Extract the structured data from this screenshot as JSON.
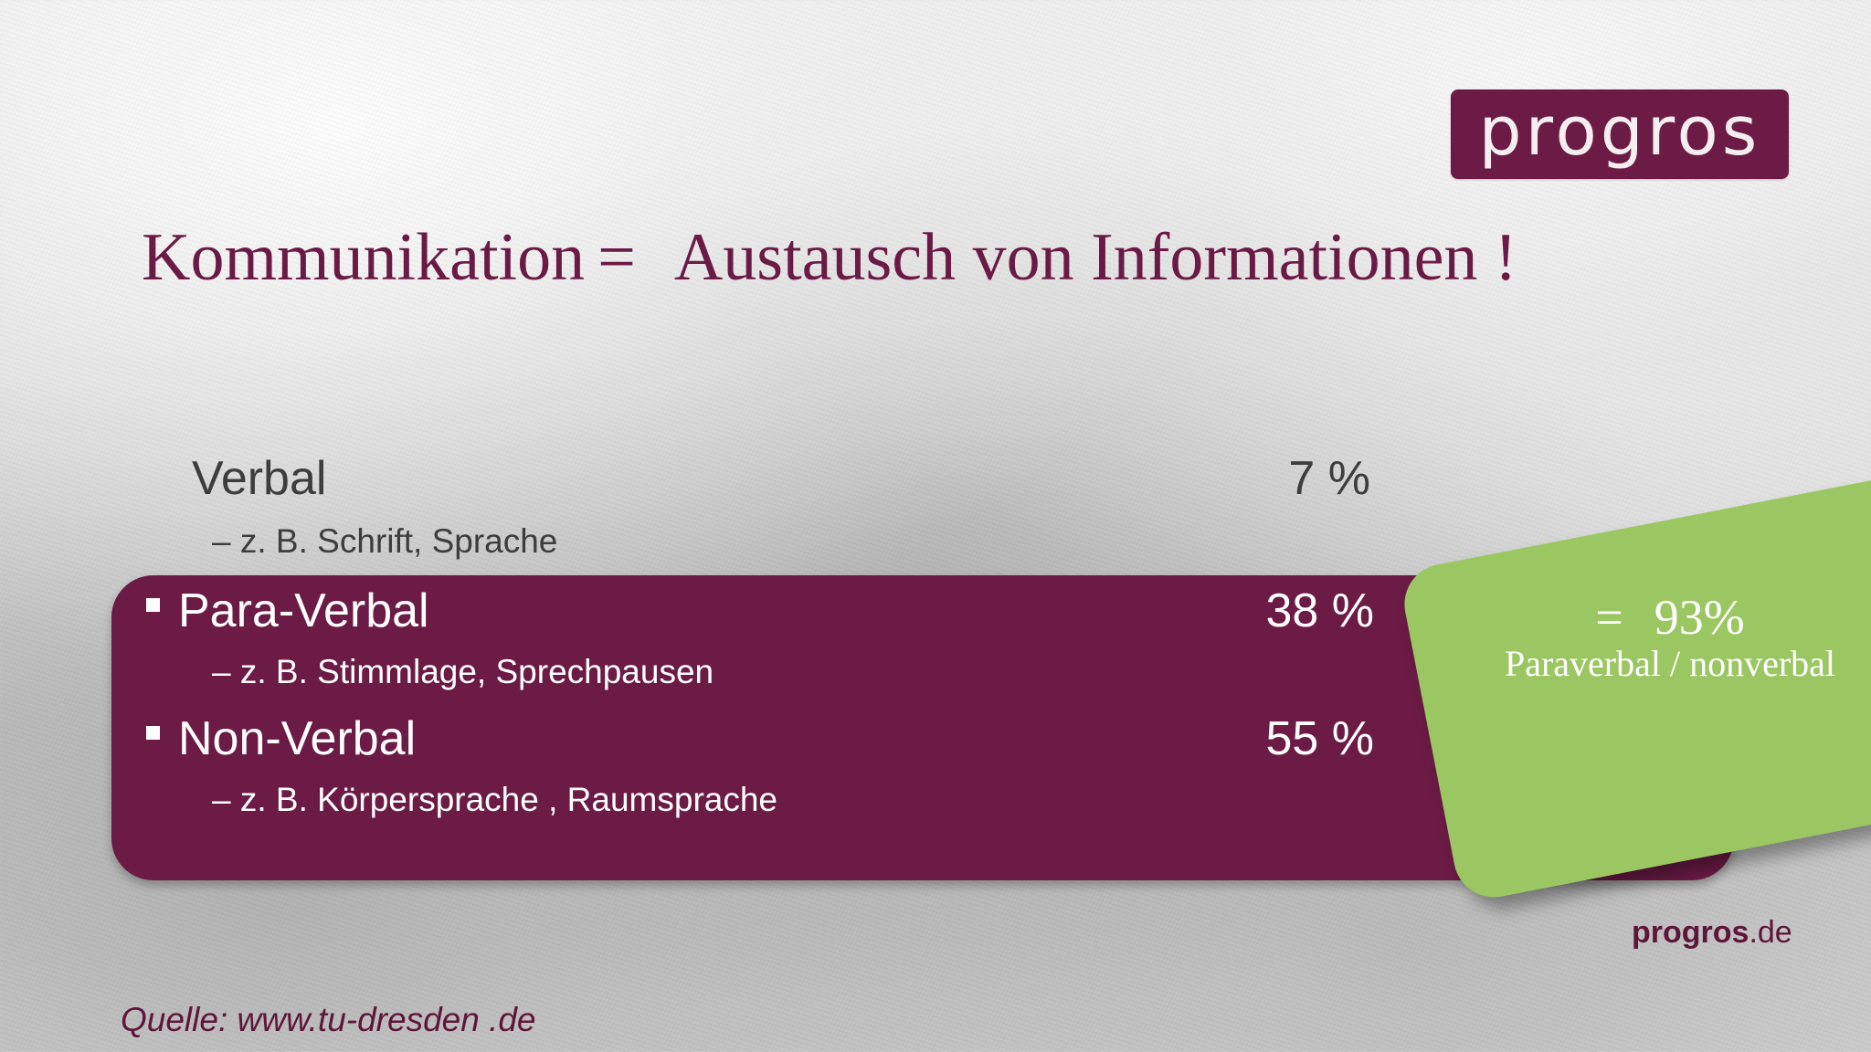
{
  "logo": {
    "text": "progros"
  },
  "title": {
    "left": "Kommunikation",
    "equals": "=",
    "right": "Austausch von Informationen !"
  },
  "items": [
    {
      "label": "Verbal",
      "percent": "7 %",
      "example": "– z. B. Schrift, Sprache"
    },
    {
      "label": "Para-Verbal",
      "percent": "38 %",
      "example": "– z. B. Stimmlage, Sprechpausen"
    },
    {
      "label": "Non-Verbal",
      "percent": "55 %",
      "example": "– z. B. Körpersprache , Raumsprache"
    }
  ],
  "summary": {
    "equals": "=",
    "value": "93%",
    "label": "Paraverbal  / nonverbal"
  },
  "footer": {
    "brand_bold": "progros",
    "brand_suffix": ".de",
    "source": "Quelle: www.tu-dresden .de"
  },
  "colors": {
    "brand": "#6c1b45",
    "accent_green": "#9bc763",
    "text_dark": "#3d3d3d"
  }
}
